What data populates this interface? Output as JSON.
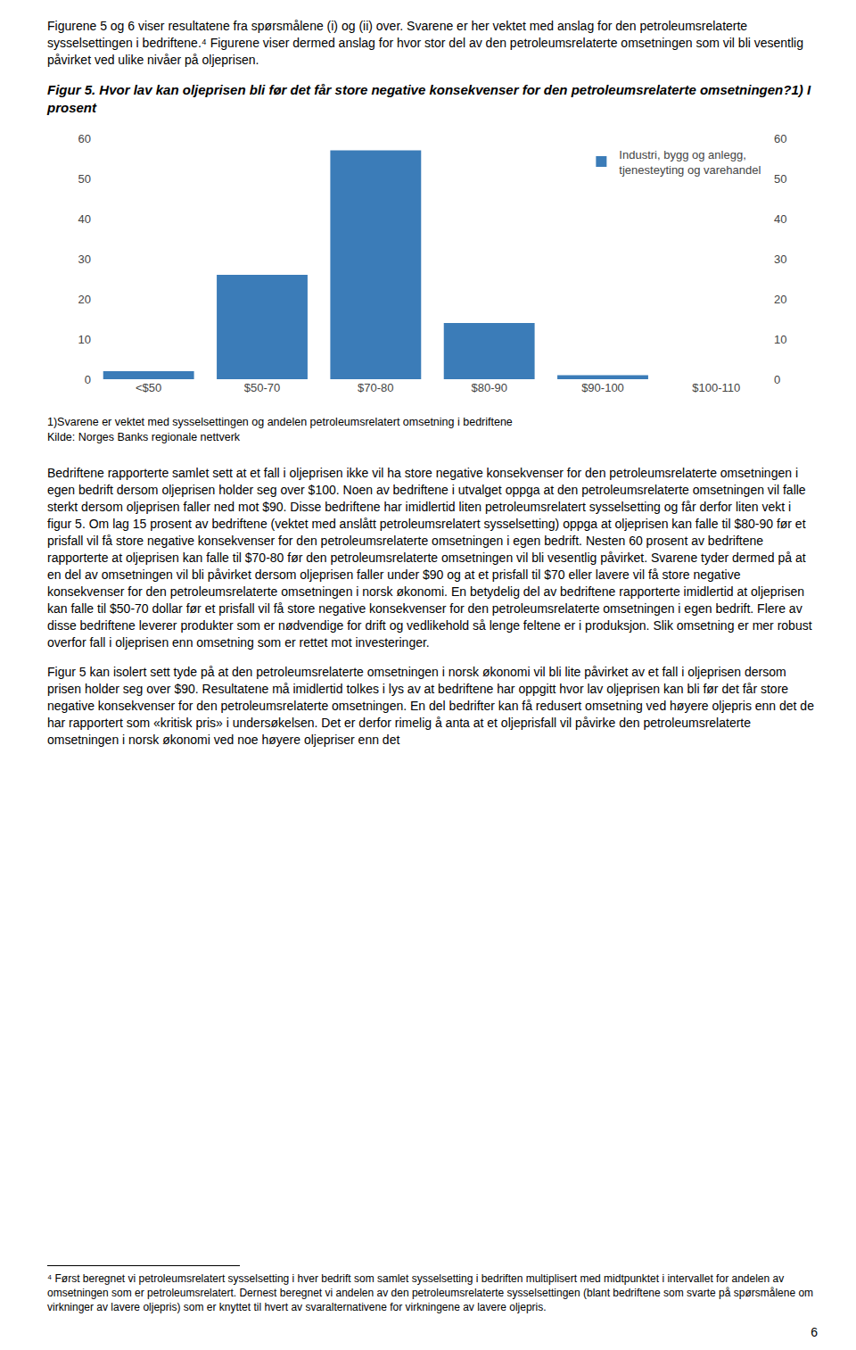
{
  "chart_data": {
    "type": "bar",
    "title": "Figur 5. Hvor lav kan oljeprisen bli før det får store negative konsekvenser for den petroleumsrelaterte omsetningen?1) I prosent",
    "categories": [
      "<$50",
      "$50-70",
      "$70-80",
      "$80-90",
      "$90-100",
      "$100-110"
    ],
    "series": [
      {
        "name": "Industri, bygg og anlegg,\ntjenesteyting og varehandel",
        "color": "#3B7CB8",
        "values": [
          2,
          26,
          57,
          14,
          1,
          0
        ]
      }
    ],
    "ylim": [
      0,
      60
    ],
    "yticks": [
      0,
      10,
      20,
      30,
      40,
      50,
      60
    ],
    "y2lim": [
      0,
      60
    ],
    "y2ticks": [
      0,
      10,
      20,
      30,
      40,
      50,
      60
    ],
    "grid": false,
    "legend": "upper right",
    "annotations": [
      "Figurene 5 og 6 viser resultatene fra spørsmålene (i) og (ii) over. Svarene er her vektet med anslag for den petroleumsrelaterte sysselsettingen i bedriftene.⁴ Figurene viser dermed anslag for hvor stor del av den petroleumsrelaterte omsetningen som vil bli vesentlig påvirket ved ulike nivåer på oljeprisen.",
      "1)Svarene er vektet med sysselsettingen og andelen petroleumsrelatert omsetning i bedriftene",
      "Kilde: Norges Banks regionale nettverk",
      "Bedriftene rapporterte samlet sett at et fall i oljeprisen ikke vil ha store negative konsekvenser for den petroleumsrelaterte omsetningen i egen bedrift dersom oljeprisen holder seg over $100. Noen av bedriftene i utvalget oppga at den petroleumsrelaterte omsetningen vil falle sterkt dersom oljeprisen faller ned mot $90. Disse bedriftene har imidlertid liten petroleumsrelatert sysselsetting og får derfor liten vekt i figur 5. Om lag 15 prosent av bedriftene (vektet med anslått petroleumsrelatert sysselsetting) oppga at oljeprisen kan falle til $80-90 før et prisfall vil få store negative konsekvenser for den petroleumsrelaterte omsetningen i egen bedrift. Nesten 60 prosent av bedriftene rapporterte at oljeprisen kan falle til $70-80 før den petroleumsrelaterte omsetningen vil bli vesentlig påvirket. Svarene tyder dermed på at en del av omsetningen vil bli påvirket dersom oljeprisen faller under $90 og at et prisfall til $70 eller lavere vil få store negative konsekvenser for den petroleumsrelaterte omsetningen i norsk økonomi. En betydelig del av bedriftene rapporterte imidlertid at oljeprisen kan falle til $50-70 dollar før et prisfall vil få store negative konsekvenser for den petroleumsrelaterte omsetningen i egen bedrift. Flere av disse bedriftene leverer produkter som er nødvendige for drift og vedlikehold så lenge feltene er i produksjon. Slik omsetning er mer robust overfor fall i oljeprisen enn omsetning som er rettet mot investeringer.",
      "Figur 5 kan isolert sett tyde på at den petroleumsrelaterte omsetningen i norsk økonomi vil bli lite påvirket av et fall i oljeprisen dersom prisen holder seg over $90. Resultatene må imidlertid tolkes i lys av at bedriftene har oppgitt hvor lav oljeprisen kan bli før det får store negative konsekvenser for den petroleumsrelaterte omsetningen. En del bedrifter kan få redusert omsetning ved høyere oljepris enn det de har rapportert som «kritisk pris» i undersøkelsen. Det er derfor rimelig å anta at et oljeprisfall vil påvirke den petroleumsrelaterte omsetningen i norsk økonomi ved noe høyere oljepriser enn det",
      "⁴ Først beregnet vi petroleumsrelatert sysselsetting i hver bedrift som samlet sysselsetting i bedriften multiplisert med midtpunktet i intervallet for andelen av omsetningen som er petroleumsrelatert. Dernest beregnet vi andelen av den petroleumsrelaterte sysselsettingen (blant bedriftene som svarte på spørsmålene om virkninger av lavere oljepris) som er knyttet til hvert av svaralternativene for virkningene av lavere oljepris.",
      "6"
    ]
  }
}
